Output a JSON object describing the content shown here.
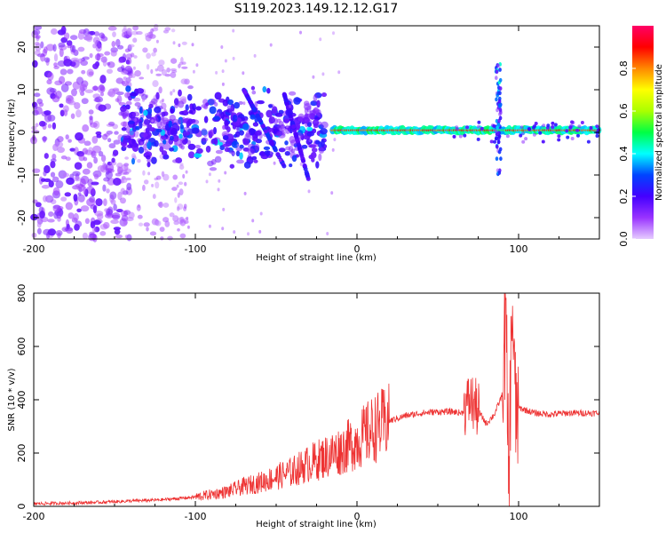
{
  "title": "S119.2023.149.12.12.G17",
  "chart_data": [
    {
      "type": "heatmap",
      "title": "S119.2023.149.12.12.G17",
      "xlabel": "Height of straight line (km)",
      "ylabel": "Frequency (Hz)",
      "xlim": [
        -200,
        150
      ],
      "ylim": [
        -25,
        25
      ],
      "x_ticks": [
        -200,
        -100,
        0,
        100
      ],
      "y_ticks": [
        -20,
        -10,
        0,
        10,
        20
      ],
      "grid": false,
      "colorbar": {
        "label": "Normalized spectral amplitude",
        "range": [
          0,
          1
        ],
        "ticks": [
          "0.0",
          "0.2",
          "0.4",
          "0.6",
          "0.8"
        ],
        "colormap": [
          "#e6ccff",
          "#9933ff",
          "#4400ff",
          "#0044ff",
          "#00ffff",
          "#00ff44",
          "#aaff00",
          "#ffff00",
          "#ff8800",
          "#ff0000",
          "#ff0066"
        ]
      },
      "features": [
        {
          "x_range": [
            -200,
            -140
          ],
          "freq_range": [
            -25,
            25
          ],
          "amplitude": 0.1,
          "description_kind": "scattered noise"
        },
        {
          "x_range": [
            -145,
            -20
          ],
          "freq_range": [
            -8,
            10
          ],
          "amplitude": 0.2
        },
        {
          "x_range": [
            -15,
            150
          ],
          "center_freq": 0.5,
          "amplitude": 0.9
        },
        {
          "x": 87,
          "freq_range": [
            -10,
            16
          ],
          "amplitude": 0.4
        }
      ]
    },
    {
      "type": "line",
      "xlabel": "Height of straight line (km)",
      "ylabel": "SNR (10 * v/v)",
      "xlim": [
        -200,
        150
      ],
      "ylim": [
        0,
        800
      ],
      "x_ticks": [
        -200,
        -100,
        0,
        100
      ],
      "y_ticks": [
        0,
        200,
        400,
        600,
        800
      ],
      "grid": false,
      "series": [
        {
          "color": "#ee3333",
          "x": [
            -200,
            -180,
            -160,
            -140,
            -120,
            -100,
            -90,
            -80,
            -70,
            -60,
            -50,
            -40,
            -30,
            -20,
            -10,
            0,
            10,
            20,
            30,
            40,
            50,
            60,
            65,
            70,
            75,
            80,
            85,
            90,
            92,
            94,
            96,
            98,
            100,
            110,
            120,
            130,
            140,
            150
          ],
          "y": [
            10,
            12,
            15,
            20,
            25,
            35,
            45,
            55,
            75,
            90,
            110,
            130,
            160,
            185,
            210,
            245,
            290,
            320,
            340,
            350,
            355,
            355,
            350,
            400,
            360,
            310,
            345,
            420,
            700,
            60,
            790,
            350,
            370,
            350,
            345,
            350,
            350,
            350
          ]
        }
      ]
    }
  ]
}
